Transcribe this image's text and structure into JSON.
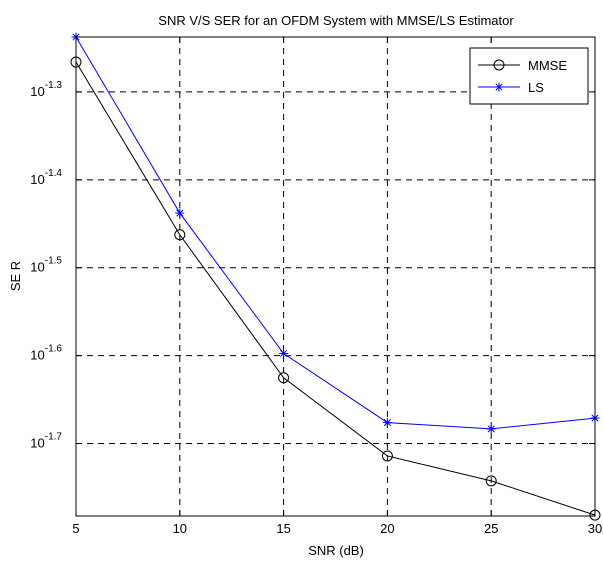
{
  "chart_data": {
    "type": "line",
    "title": "SNR V/S SER for an OFDM System with MMSE/LS Estimator",
    "xlabel": "SNR (dB)",
    "ylabel": "SE R",
    "x": [
      5,
      10,
      15,
      20,
      25,
      30
    ],
    "xlim": [
      5,
      30
    ],
    "x_ticks": [
      "5",
      "10",
      "15",
      "20",
      "25",
      "30"
    ],
    "y_scale": "log",
    "y_tick_base": "10",
    "y_tick_exponents": [
      "-1.3",
      "-1.4",
      "-1.5",
      "-1.6",
      "-1.7"
    ],
    "ylim_log10": [
      -1.7825,
      -1.2375
    ],
    "grid": true,
    "legend_position": "top-right",
    "series": [
      {
        "name": "MMSE",
        "marker": "circle",
        "color": "#000000",
        "log10_values": [
          -1.266,
          -1.4625,
          -1.6252,
          -1.7142,
          -1.7425,
          -1.7815
        ],
        "values": [
          0.0542,
          0.0345,
          0.0237,
          0.0193,
          0.0181,
          0.0165
        ]
      },
      {
        "name": "LS",
        "marker": "star",
        "color": "#0000ff",
        "log10_values": [
          -1.2375,
          -1.4378,
          -1.5976,
          -1.6762,
          -1.6834,
          -1.6711
        ],
        "values": [
          0.0579,
          0.0365,
          0.0253,
          0.0211,
          0.0207,
          0.0213
        ]
      }
    ]
  }
}
